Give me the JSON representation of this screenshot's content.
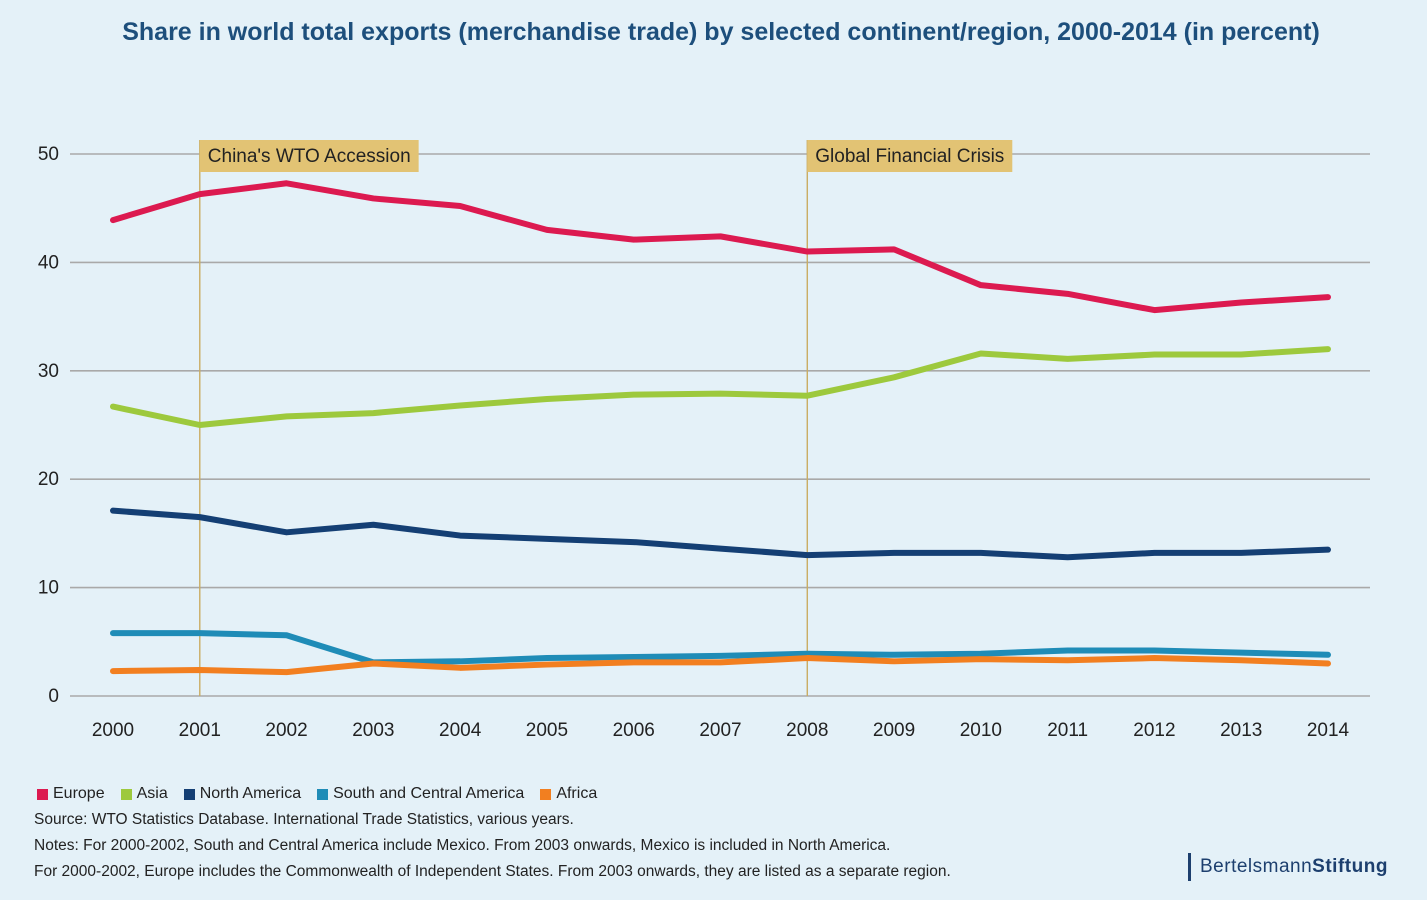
{
  "chart_data": {
    "type": "line",
    "title": "Share in world total exports (merchandise trade) by selected continent/region, 2000-2014 (in percent)",
    "x": [
      "2000",
      "2001",
      "2002",
      "2003",
      "2004",
      "2005",
      "2006",
      "2007",
      "2008",
      "2009",
      "2010",
      "2011",
      "2012",
      "2013",
      "2014"
    ],
    "ylim": [
      0,
      50
    ],
    "yticks": [
      "0",
      "10",
      "20",
      "30",
      "40",
      "50"
    ],
    "grid": true,
    "legend_position": "bottom-left",
    "series": [
      {
        "name": "Europe",
        "color": "#dc1a50",
        "values": [
          43.9,
          46.3,
          47.3,
          45.9,
          45.2,
          43.0,
          42.1,
          42.4,
          41.0,
          41.2,
          37.9,
          37.1,
          35.6,
          36.3,
          36.8
        ]
      },
      {
        "name": "Asia",
        "color": "#9dc93d",
        "values": [
          26.7,
          25.0,
          25.8,
          26.1,
          26.8,
          27.4,
          27.8,
          27.9,
          27.7,
          29.4,
          31.6,
          31.1,
          31.5,
          31.5,
          32.0
        ]
      },
      {
        "name": "North America",
        "color": "#143f74",
        "values": [
          17.1,
          16.5,
          15.1,
          15.8,
          14.8,
          14.5,
          14.2,
          13.6,
          13.0,
          13.2,
          13.2,
          12.8,
          13.2,
          13.2,
          13.5
        ]
      },
      {
        "name": "South and Central America",
        "color": "#1f8cb7",
        "values": [
          5.8,
          5.8,
          5.6,
          3.1,
          3.2,
          3.5,
          3.6,
          3.7,
          3.9,
          3.8,
          3.9,
          4.2,
          4.2,
          4.0,
          3.8
        ]
      },
      {
        "name": "Africa",
        "color": "#f27f20",
        "values": [
          2.3,
          2.4,
          2.2,
          3.0,
          2.6,
          2.9,
          3.1,
          3.1,
          3.5,
          3.2,
          3.4,
          3.3,
          3.5,
          3.3,
          3.0
        ]
      }
    ],
    "annotations": [
      {
        "label": "China's WTO Accession",
        "x": "2001"
      },
      {
        "label": "Global Financial Crisis",
        "x": "2008"
      }
    ]
  },
  "footer": {
    "source": "Source:  WTO Statistics Database. International Trade Statistics, various years.",
    "notes_1": "Notes: For 2000-2002, South and Central America include Mexico. From 2003 onwards, Mexico is included in North America.",
    "notes_2": "For 2000-2002, Europe includes the Commonwealth of Independent States. From 2003 onwards, they are listed as a separate region."
  },
  "brand": {
    "part1": "Bertelsmann",
    "part2": "Stiftung"
  }
}
